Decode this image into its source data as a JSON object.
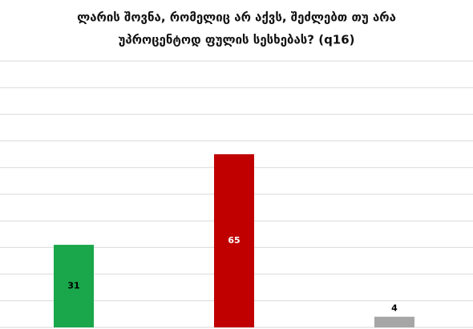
{
  "chart_data": {
    "type": "bar",
    "title": [
      "ლარის შოვნა, რომელიც არ აქვს, შეძლებთ თუ არა",
      "უპროცენტოდ ფულის სესხებას? (q16)"
    ],
    "categories": [
      null,
      null,
      null
    ],
    "values": [
      31,
      65,
      4
    ],
    "colors": [
      "#1aa64a",
      "#c00000",
      "#a6a6a6"
    ],
    "label_colors": [
      "#000000",
      "#ffffff",
      "#000000"
    ],
    "ylim": [
      0,
      100
    ],
    "yticks": [
      0,
      10,
      20,
      30,
      40,
      50,
      60,
      70,
      80,
      90,
      100
    ],
    "grid": true
  }
}
